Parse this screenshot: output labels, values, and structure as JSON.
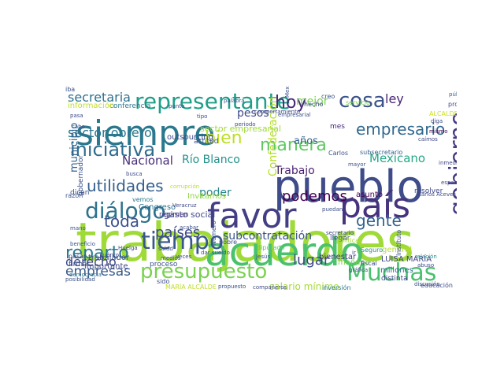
{
  "words": [
    {
      "text": "trabajadores",
      "color": "#a0da39",
      "vertical": false
    },
    {
      "text": "acuerdo",
      "color": "#4ac16d",
      "vertical": false
    },
    {
      "text": "pueblo",
      "color": "#3e4c8a",
      "vertical": false
    },
    {
      "text": "siempre",
      "color": "#2a788e",
      "vertical": false
    },
    {
      "text": "favor",
      "color": "#433e85",
      "vertical": false
    },
    {
      "text": "país",
      "color": "#46337e",
      "vertical": false
    },
    {
      "text": "tiempo",
      "color": "#38588c",
      "vertical": false
    },
    {
      "text": "presupuesto",
      "color": "#7ad151",
      "vertical": false
    },
    {
      "text": "Muchas",
      "color": "#4ac16d",
      "vertical": false
    },
    {
      "text": "diálogo",
      "color": "#2c728e",
      "vertical": false
    },
    {
      "text": "representante",
      "color": "#1f9e89",
      "vertical": false
    },
    {
      "text": "iniciativa",
      "color": "#2f6c8e",
      "vertical": false
    },
    {
      "text": "reparto",
      "color": "#2a788e",
      "vertical": false
    },
    {
      "text": "cosa",
      "color": "#3b528b",
      "vertical": false
    },
    {
      "text": "manera",
      "color": "#5ec962",
      "vertical": false
    },
    {
      "text": "empresario",
      "color": "#31688e",
      "vertical": false
    },
    {
      "text": "hoy",
      "color": "#482878",
      "vertical": false
    },
    {
      "text": "bien",
      "color": "#bddf26",
      "vertical": false
    },
    {
      "text": "utilidades",
      "color": "#355f8d",
      "vertical": false
    },
    {
      "text": "podemos",
      "color": "#440154",
      "vertical": false
    },
    {
      "text": "lugar",
      "color": "#3e4989",
      "vertical": false
    },
    {
      "text": "gente",
      "color": "#32648e",
      "vertical": false
    },
    {
      "text": "toda",
      "color": "#3b528b",
      "vertical": false
    },
    {
      "text": "países",
      "color": "#3e4989",
      "vertical": false
    },
    {
      "text": "empresas",
      "color": "#38598c",
      "vertical": false
    },
    {
      "text": "derecho",
      "color": "#3f4788",
      "vertical": false
    },
    {
      "text": "secretaria",
      "color": "#2d708e",
      "vertical": false
    },
    {
      "text": "sector obrero",
      "color": "#2a788e",
      "vertical": false
    },
    {
      "text": "Nacional",
      "color": "#472d7b",
      "vertical": false
    },
    {
      "text": "Río Blanco",
      "color": "#21918c",
      "vertical": false
    },
    {
      "text": "Mexicano",
      "color": "#22a785",
      "vertical": false
    },
    {
      "text": "Trabajo",
      "color": "#481f70",
      "vertical": false
    },
    {
      "text": "poder",
      "color": "#25838e",
      "vertical": false
    },
    {
      "text": "pesos",
      "color": "#3e4989",
      "vertical": false
    },
    {
      "text": "mejor",
      "color": "#7ad151",
      "vertical": false
    },
    {
      "text": "ley",
      "color": "#482475",
      "vertical": false
    },
    {
      "text": "años",
      "color": "#355f8d",
      "vertical": false
    },
    {
      "text": "subcontratación",
      "color": "#3b528b",
      "vertical": false
    },
    {
      "text": "gobierno",
      "color": "#453781",
      "vertical": true
    },
    {
      "text": "municipio",
      "color": "#33638d",
      "vertical": true
    },
    {
      "text": "Confederación",
      "color": "#b5de2b",
      "vertical": true
    },
    {
      "text": "salario mínimo",
      "color": "#a5db36",
      "vertical": false
    },
    {
      "text": "sector empresarial",
      "color": "#a0da39",
      "vertical": false
    },
    {
      "text": "importante",
      "color": "#3f4788",
      "vertical": false
    },
    {
      "text": "LUISA MARÍA",
      "color": "#404688",
      "vertical": false
    },
    {
      "text": "millones",
      "color": "#2e6e8e",
      "vertical": false
    },
    {
      "text": "bienestar",
      "color": "#453781",
      "vertical": false
    },
    {
      "text": "trabajador",
      "color": "#3b528b",
      "vertical": false
    },
    {
      "text": "outsourcing",
      "color": "#3e4989",
      "vertical": false
    },
    {
      "text": "gasto social",
      "color": "#3e4989",
      "vertical": false
    },
    {
      "text": "Invitamos",
      "color": "#8fd744",
      "vertical": false
    },
    {
      "text": "Congreso",
      "color": "#2d718e",
      "vertical": false
    },
    {
      "text": "dicen",
      "color": "#3b528b",
      "vertical": false
    },
    {
      "text": "asunto",
      "color": "#440154",
      "vertical": false
    },
    {
      "text": "resolver",
      "color": "#3e4989",
      "vertical": false
    },
    {
      "text": "mañana",
      "color": "#7ad151",
      "vertical": false
    },
    {
      "text": "general",
      "color": "#b5de2b",
      "vertical": false
    },
    {
      "text": "régimen",
      "color": "#453781",
      "vertical": false
    },
    {
      "text": "conferencia",
      "color": "#2a788e",
      "vertical": false
    },
    {
      "text": "información",
      "color": "#c0df25",
      "vertical": false
    },
    {
      "text": "actitud",
      "color": "#3b528b",
      "vertical": false
    },
    {
      "text": "mes",
      "color": "#472d7b",
      "vertical": false
    },
    {
      "text": "llegar",
      "color": "#3e4989",
      "vertical": false
    },
    {
      "text": "proceso",
      "color": "#3b528b",
      "vertical": false
    },
    {
      "text": "firmar",
      "color": "#3b528b",
      "vertical": false
    },
    {
      "text": "pasar",
      "color": "#3e4989",
      "vertical": false
    },
    {
      "text": "democracia",
      "color": "#2a788e",
      "vertical": false
    },
    {
      "text": "educación",
      "color": "#3e4989",
      "vertical": false
    },
    {
      "text": "distinta",
      "color": "#3e4989",
      "vertical": false
    },
    {
      "text": "inversión",
      "color": "#2a788e",
      "vertical": false
    },
    {
      "text": "MARÍA ALCALDE",
      "color": "#bddf26",
      "vertical": false
    },
    {
      "text": "ALCALDE LUJÁN",
      "color": "#cde11d",
      "vertical": false
    },
    {
      "text": "diputado",
      "color": "#5ec962",
      "vertical": false
    },
    {
      "text": "Carlos",
      "color": "#3b528b",
      "vertical": false
    },
    {
      "text": "subsecretario",
      "color": "#355f8d",
      "vertical": false
    },
    {
      "text": "programa",
      "color": "#3e4989",
      "vertical": false
    },
    {
      "text": "público",
      "color": "#355f8d",
      "vertical": false
    },
    {
      "text": "servicio",
      "color": "#7ad151",
      "vertical": false
    },
    {
      "text": "caímos",
      "color": "#3e4989",
      "vertical": false
    },
    {
      "text": "mismo",
      "color": "#440154",
      "vertical": false
    },
    {
      "text": "diga",
      "color": "#3e4989",
      "vertical": false
    },
    {
      "text": "gobernador",
      "color": "#3b528b",
      "vertical": true
    },
    {
      "text": "Seguro",
      "color": "#21918c",
      "vertical": false
    },
    {
      "text": "política",
      "color": "#a0da39",
      "vertical": false
    },
    {
      "text": "fiscal",
      "color": "#3e4989",
      "vertical": false
    },
    {
      "text": "Carlos Aceves",
      "color": "#3e4989",
      "vertical": false
    },
    {
      "text": "Veracruz",
      "color": "#3e4989",
      "vertical": false
    },
    {
      "text": "corrupción",
      "color": "#bddf26",
      "vertical": false
    },
    {
      "text": "pobre",
      "color": "#3e4989",
      "vertical": false
    },
    {
      "text": "razón",
      "color": "#3b528b",
      "vertical": false
    },
    {
      "text": "vemos",
      "color": "#2a788e",
      "vertical": false
    },
    {
      "text": "compañeros",
      "color": "#3e4989",
      "vertical": false
    },
    {
      "text": "posibilidad",
      "color": "#3b528b",
      "vertical": false
    },
    {
      "text": "Jesús",
      "color": "#3b528b",
      "vertical": false
    },
    {
      "text": "gráfica",
      "color": "#3e4989",
      "vertical": false
    },
    {
      "text": "relación",
      "color": "#21918c",
      "vertical": false
    },
    {
      "text": "mano",
      "color": "#3b528b",
      "vertical": false
    },
    {
      "text": "pasa",
      "color": "#3e4989",
      "vertical": false
    },
    {
      "text": "cabo",
      "color": "#3b528b",
      "vertical": false
    },
    {
      "text": "punto",
      "color": "#3e4989",
      "vertical": false
    },
    {
      "text": "palabra",
      "color": "#3b528b",
      "vertical": false
    },
    {
      "text": "periodo",
      "color": "#3e4989",
      "vertical": false
    },
    {
      "text": "tipo",
      "color": "#3b528b",
      "vertical": false
    },
    {
      "text": "busca",
      "color": "#3e4989",
      "vertical": false
    },
    {
      "text": "acabar",
      "color": "#3b528b",
      "vertical": false
    },
    {
      "text": "salud",
      "color": "#3e4989",
      "vertical": false
    },
    {
      "text": "dar sueldo",
      "color": "#3b528b",
      "vertical": false
    },
    {
      "text": "veces",
      "color": "#3e4989",
      "vertical": false
    },
    {
      "text": "medios",
      "color": "#3b528b",
      "vertical": false
    },
    {
      "text": "Huelga",
      "color": "#3e4989",
      "vertical": false
    },
    {
      "text": "beneficio",
      "color": "#3b528b",
      "vertical": false
    },
    {
      "text": "cuánto",
      "color": "#3e4989",
      "vertical": false
    },
    {
      "text": "Número",
      "color": "#3b528b",
      "vertical": true
    },
    {
      "text": "social",
      "color": "#3e4989",
      "vertical": true
    },
    {
      "text": "creo",
      "color": "#3b528b",
      "vertical": false
    },
    {
      "text": "hecho",
      "color": "#3e4989",
      "vertical": false
    },
    {
      "text": "puedan",
      "color": "#3b528b",
      "vertical": false
    },
    {
      "text": "inmediato",
      "color": "#3e4989",
      "vertical": false
    },
    {
      "text": "mayor",
      "color": "#3b528b",
      "vertical": false
    },
    {
      "text": "espacio",
      "color": "#3e4989",
      "vertical": false
    },
    {
      "text": "Instituto",
      "color": "#3b528b",
      "vertical": true
    },
    {
      "text": "abuso",
      "color": "#3e4989",
      "vertical": false
    },
    {
      "text": "discusión",
      "color": "#3b528b",
      "vertical": false
    },
    {
      "text": "ir",
      "color": "#3e4989",
      "vertical": false
    },
    {
      "text": "Mexicano",
      "color": "#3b528b",
      "vertical": true
    },
    {
      "text": "secretario",
      "color": "#3e4989",
      "vertical": false
    },
    {
      "text": "empresarial",
      "color": "#3b528b",
      "vertical": false
    },
    {
      "text": "comportamiento",
      "color": "#3e4989",
      "vertical": false
    },
    {
      "text": "propuesto",
      "color": "#3b528b",
      "vertical": false
    },
    {
      "text": "sido",
      "color": "#3e4989",
      "vertical": false
    },
    {
      "text": "iba",
      "color": "#3b528b",
      "vertical": false
    }
  ]
}
